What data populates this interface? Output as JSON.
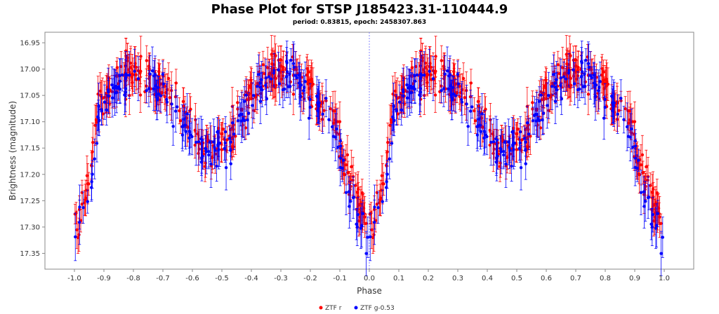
{
  "chart_data": {
    "type": "scatter",
    "title": "Phase Plot for STSP J185423.31-110444.9",
    "subtitle": "period: 0.83815, epoch: 2458307.863",
    "xlabel": "Phase",
    "ylabel": "Brightness (magnitude)",
    "xlim": [
      -1.1,
      1.1
    ],
    "ylim": [
      17.38,
      16.93
    ],
    "y_inverted": true,
    "x_ticks": [
      -1.0,
      -0.9,
      -0.8,
      -0.7,
      -0.6,
      -0.5,
      -0.4,
      -0.3,
      -0.2,
      -0.1,
      0.0,
      0.1,
      0.2,
      0.3,
      0.4,
      0.5,
      0.6,
      0.7,
      0.8,
      0.9,
      1.0
    ],
    "x_tick_labels": [
      "-1.0",
      "-0.9",
      "-0.8",
      "-0.7",
      "-0.6",
      "-0.5",
      "-0.4",
      "-0.3",
      "-0.2",
      "-0.1",
      "0.0",
      "0.1",
      "0.2",
      "0.3",
      "0.4",
      "0.5",
      "0.6",
      "0.7",
      "0.8",
      "0.9",
      "1.0"
    ],
    "y_ticks": [
      16.95,
      17.0,
      17.05,
      17.1,
      17.15,
      17.2,
      17.25,
      17.3,
      17.35
    ],
    "y_tick_labels": [
      "16.95",
      "17.00",
      "17.05",
      "17.10",
      "17.15",
      "17.20",
      "17.25",
      "17.30",
      "17.35"
    ],
    "grid": false,
    "reference_line_x": 0.0,
    "legend_position": "bottom",
    "series": [
      {
        "name": "ZTF r",
        "color": "#ff0000",
        "error_bar": 0.03,
        "curve": [
          [
            0.0,
            17.3
          ],
          [
            0.03,
            17.26
          ],
          [
            0.06,
            17.17
          ],
          [
            0.08,
            17.08
          ],
          [
            0.12,
            17.03
          ],
          [
            0.17,
            17.01
          ],
          [
            0.22,
            17.0
          ],
          [
            0.27,
            17.02
          ],
          [
            0.32,
            17.05
          ],
          [
            0.37,
            17.09
          ],
          [
            0.42,
            17.13
          ],
          [
            0.47,
            17.15
          ],
          [
            0.52,
            17.13
          ],
          [
            0.57,
            17.08
          ],
          [
            0.62,
            17.03
          ],
          [
            0.67,
            17.01
          ],
          [
            0.72,
            17.0
          ],
          [
            0.77,
            17.02
          ],
          [
            0.82,
            17.05
          ],
          [
            0.87,
            17.08
          ],
          [
            0.9,
            17.14
          ],
          [
            0.93,
            17.21
          ],
          [
            0.97,
            17.27
          ],
          [
            1.0,
            17.3
          ]
        ]
      },
      {
        "name": "ZTF g-0.53",
        "color": "#0000ff",
        "error_bar": 0.035,
        "curve": [
          [
            0.0,
            17.33
          ],
          [
            0.03,
            17.28
          ],
          [
            0.06,
            17.2
          ],
          [
            0.08,
            17.1
          ],
          [
            0.12,
            17.04
          ],
          [
            0.17,
            17.02
          ],
          [
            0.22,
            17.01
          ],
          [
            0.27,
            17.03
          ],
          [
            0.32,
            17.06
          ],
          [
            0.37,
            17.1
          ],
          [
            0.42,
            17.14
          ],
          [
            0.47,
            17.16
          ],
          [
            0.52,
            17.14
          ],
          [
            0.57,
            17.09
          ],
          [
            0.62,
            17.04
          ],
          [
            0.67,
            17.02
          ],
          [
            0.72,
            17.01
          ],
          [
            0.77,
            17.03
          ],
          [
            0.82,
            17.06
          ],
          [
            0.87,
            17.09
          ],
          [
            0.9,
            17.15
          ],
          [
            0.93,
            17.23
          ],
          [
            0.97,
            17.29
          ],
          [
            1.0,
            17.33
          ]
        ]
      }
    ]
  }
}
